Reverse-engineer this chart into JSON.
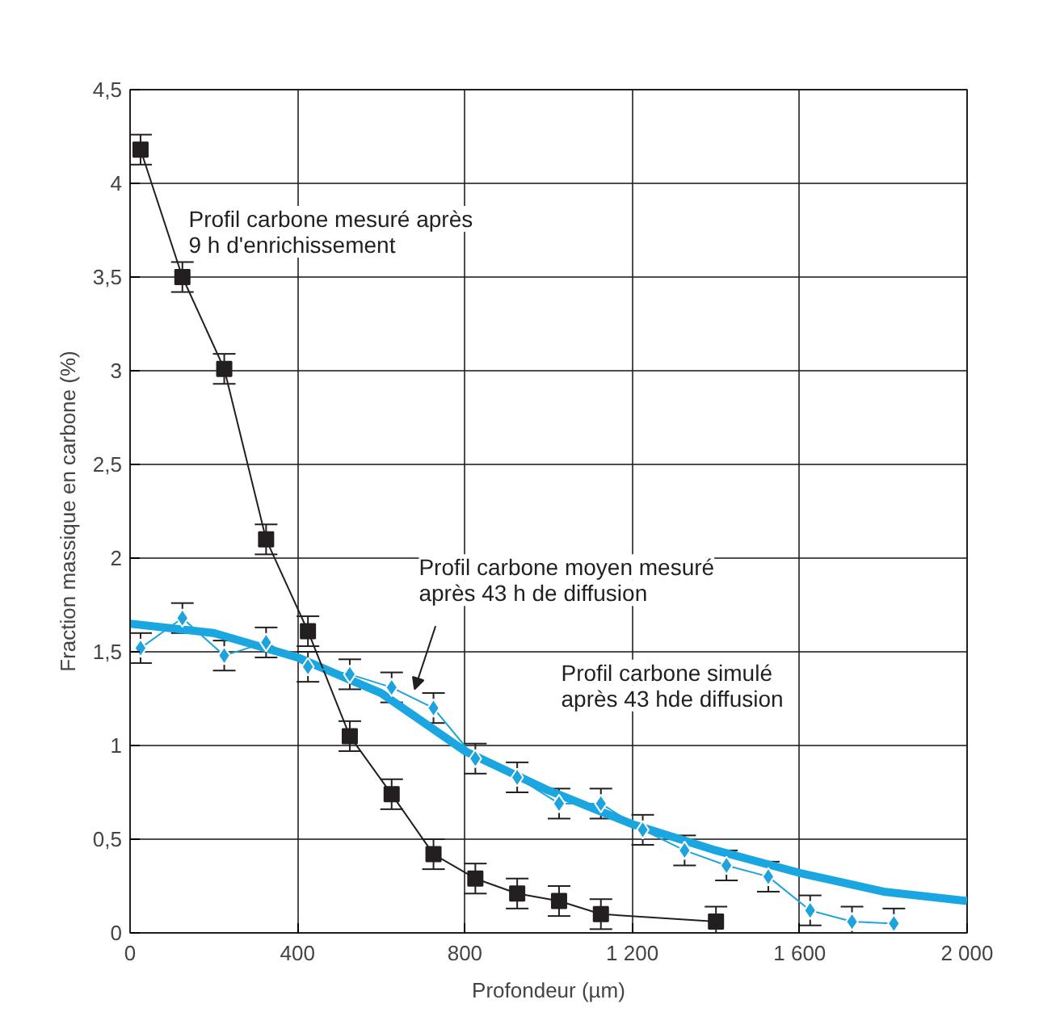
{
  "chart_data": {
    "type": "line",
    "xlabel": "Profondeur (µm)",
    "ylabel": "Fraction massique en carbone (%)",
    "xlim": [
      0,
      2000
    ],
    "ylim": [
      0,
      4.5
    ],
    "xticks": [
      0,
      400,
      800,
      {
        "value": 1200,
        "label": "1 200"
      },
      {
        "value": 1600,
        "label": "1 600"
      },
      {
        "value": 2000,
        "label": "2 000"
      }
    ],
    "yticks": [
      0,
      {
        "value": 0.5,
        "label": "0,5"
      },
      1,
      {
        "value": 1.5,
        "label": "1,5"
      },
      2,
      {
        "value": 2.5,
        "label": "2,5"
      },
      3,
      {
        "value": 3.5,
        "label": "3,5"
      },
      4,
      {
        "value": 4.5,
        "label": "4,5"
      }
    ],
    "grid": true,
    "series": [
      {
        "type": "line",
        "color": "#1aa6e0",
        "marker": "none",
        "x": [
          0,
          200,
          400,
          600,
          800,
          1000,
          1200,
          1400,
          1600,
          1800,
          2000
        ],
        "values": [
          1.65,
          1.6,
          1.47,
          1.28,
          0.97,
          0.76,
          0.58,
          0.44,
          0.32,
          0.22,
          0.17
        ]
      },
      {
        "type": "line",
        "color": "#231f20",
        "marker": "square",
        "x": [
          25,
          125,
          225,
          325,
          425,
          525,
          625,
          725,
          825,
          925,
          1025,
          1125,
          1400
        ],
        "values": [
          4.18,
          3.5,
          3.01,
          2.1,
          1.61,
          1.05,
          0.74,
          0.42,
          0.29,
          0.21,
          0.17,
          0.1,
          0.06
        ],
        "errors": [
          0.08,
          0.08,
          0.08,
          0.08,
          0.08,
          0.08,
          0.08,
          0.08,
          0.08,
          0.08,
          0.08,
          0.08,
          0.08
        ]
      },
      {
        "type": "line",
        "color": "#1fa3dc",
        "marker": "diamond",
        "x": [
          25,
          125,
          225,
          325,
          425,
          525,
          625,
          725,
          825,
          925,
          1025,
          1125,
          1225,
          1325,
          1425,
          1525,
          1625,
          1725,
          1825
        ],
        "values": [
          1.52,
          1.68,
          1.48,
          1.55,
          1.42,
          1.38,
          1.31,
          1.2,
          0.93,
          0.83,
          0.69,
          0.69,
          0.55,
          0.44,
          0.36,
          0.3,
          0.12,
          0.06,
          0.05
        ],
        "errors": [
          0.08,
          0.08,
          0.08,
          0.08,
          0.08,
          0.08,
          0.08,
          0.08,
          0.08,
          0.08,
          0.08,
          0.08,
          0.08,
          0.08,
          0.08,
          0.08,
          0.08,
          0.08,
          0.08
        ]
      }
    ],
    "annotations": [
      "Profil carbone mesuré après\n9 h d'enrichissement",
      {
        "text": "Profil carbone moyen mesuré\naprès 43 h de diffusion",
        "x": 680,
        "y": 1.3
      },
      "Profil carbone simulé\naprès 43 hde diffusion"
    ]
  }
}
